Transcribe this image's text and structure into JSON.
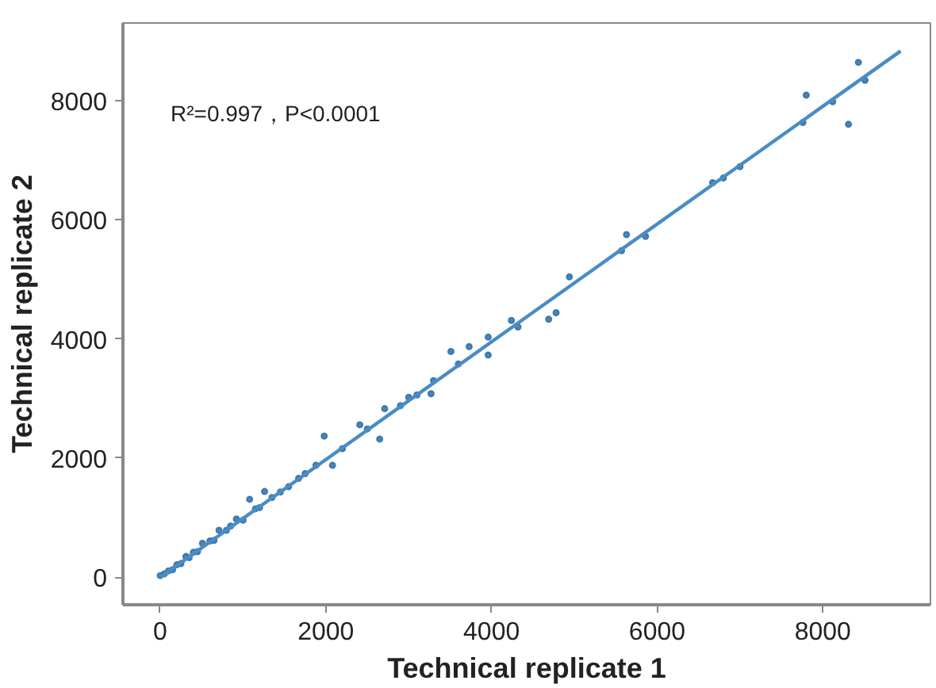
{
  "chart_data": {
    "type": "scatter",
    "xlabel": "Technical replicate 1",
    "ylabel": "Technical replicate 2",
    "annotations": [
      "R²=0.997，P<0.0001"
    ],
    "xlim": [
      -450,
      9300
    ],
    "ylim": [
      -460,
      9300
    ],
    "xticks": [
      0,
      2000,
      4000,
      6000,
      8000
    ],
    "yticks": [
      0,
      2000,
      4000,
      6000,
      8000
    ],
    "grid": false,
    "marker": "circle",
    "series": [
      {
        "color": "#2f6fa8",
        "x": [
          8430,
          8510,
          7800,
          7760,
          8120,
          8310,
          6670,
          6800,
          7000,
          5630,
          5570,
          5860,
          4940,
          4690,
          4780,
          4240,
          4320,
          3960,
          3730,
          3510,
          3960,
          3300,
          3000,
          3270,
          2710,
          2650,
          2410,
          1980,
          2080,
          1880,
          1670,
          1260,
          1080,
          920,
          710,
          510,
          310,
          100,
          0,
          50,
          150,
          200,
          250,
          350,
          400,
          450,
          600,
          650,
          800,
          850,
          1000,
          1150,
          1200,
          1350,
          1450,
          1550,
          1750,
          2200,
          2500,
          2900,
          3100,
          3600
        ],
        "values": [
          8640,
          8340,
          8090,
          7630,
          7980,
          7600,
          6620,
          6700,
          6890,
          5750,
          5480,
          5720,
          5040,
          4330,
          4440,
          4310,
          4200,
          4030,
          3870,
          3790,
          3730,
          3300,
          3020,
          3080,
          2830,
          2320,
          2560,
          2370,
          1880,
          1880,
          1660,
          1440,
          1310,
          980,
          790,
          570,
          350,
          110,
          30,
          60,
          130,
          210,
          230,
          330,
          420,
          430,
          610,
          620,
          790,
          860,
          960,
          1150,
          1170,
          1340,
          1430,
          1520,
          1740,
          2160,
          2490,
          2880,
          3060,
          3580
        ]
      },
      {
        "type": "line",
        "color": "#4a8cc4",
        "line_style": "solid",
        "marker": "none",
        "x": [
          0,
          8940
        ],
        "values": [
          0,
          8830
        ]
      }
    ]
  }
}
